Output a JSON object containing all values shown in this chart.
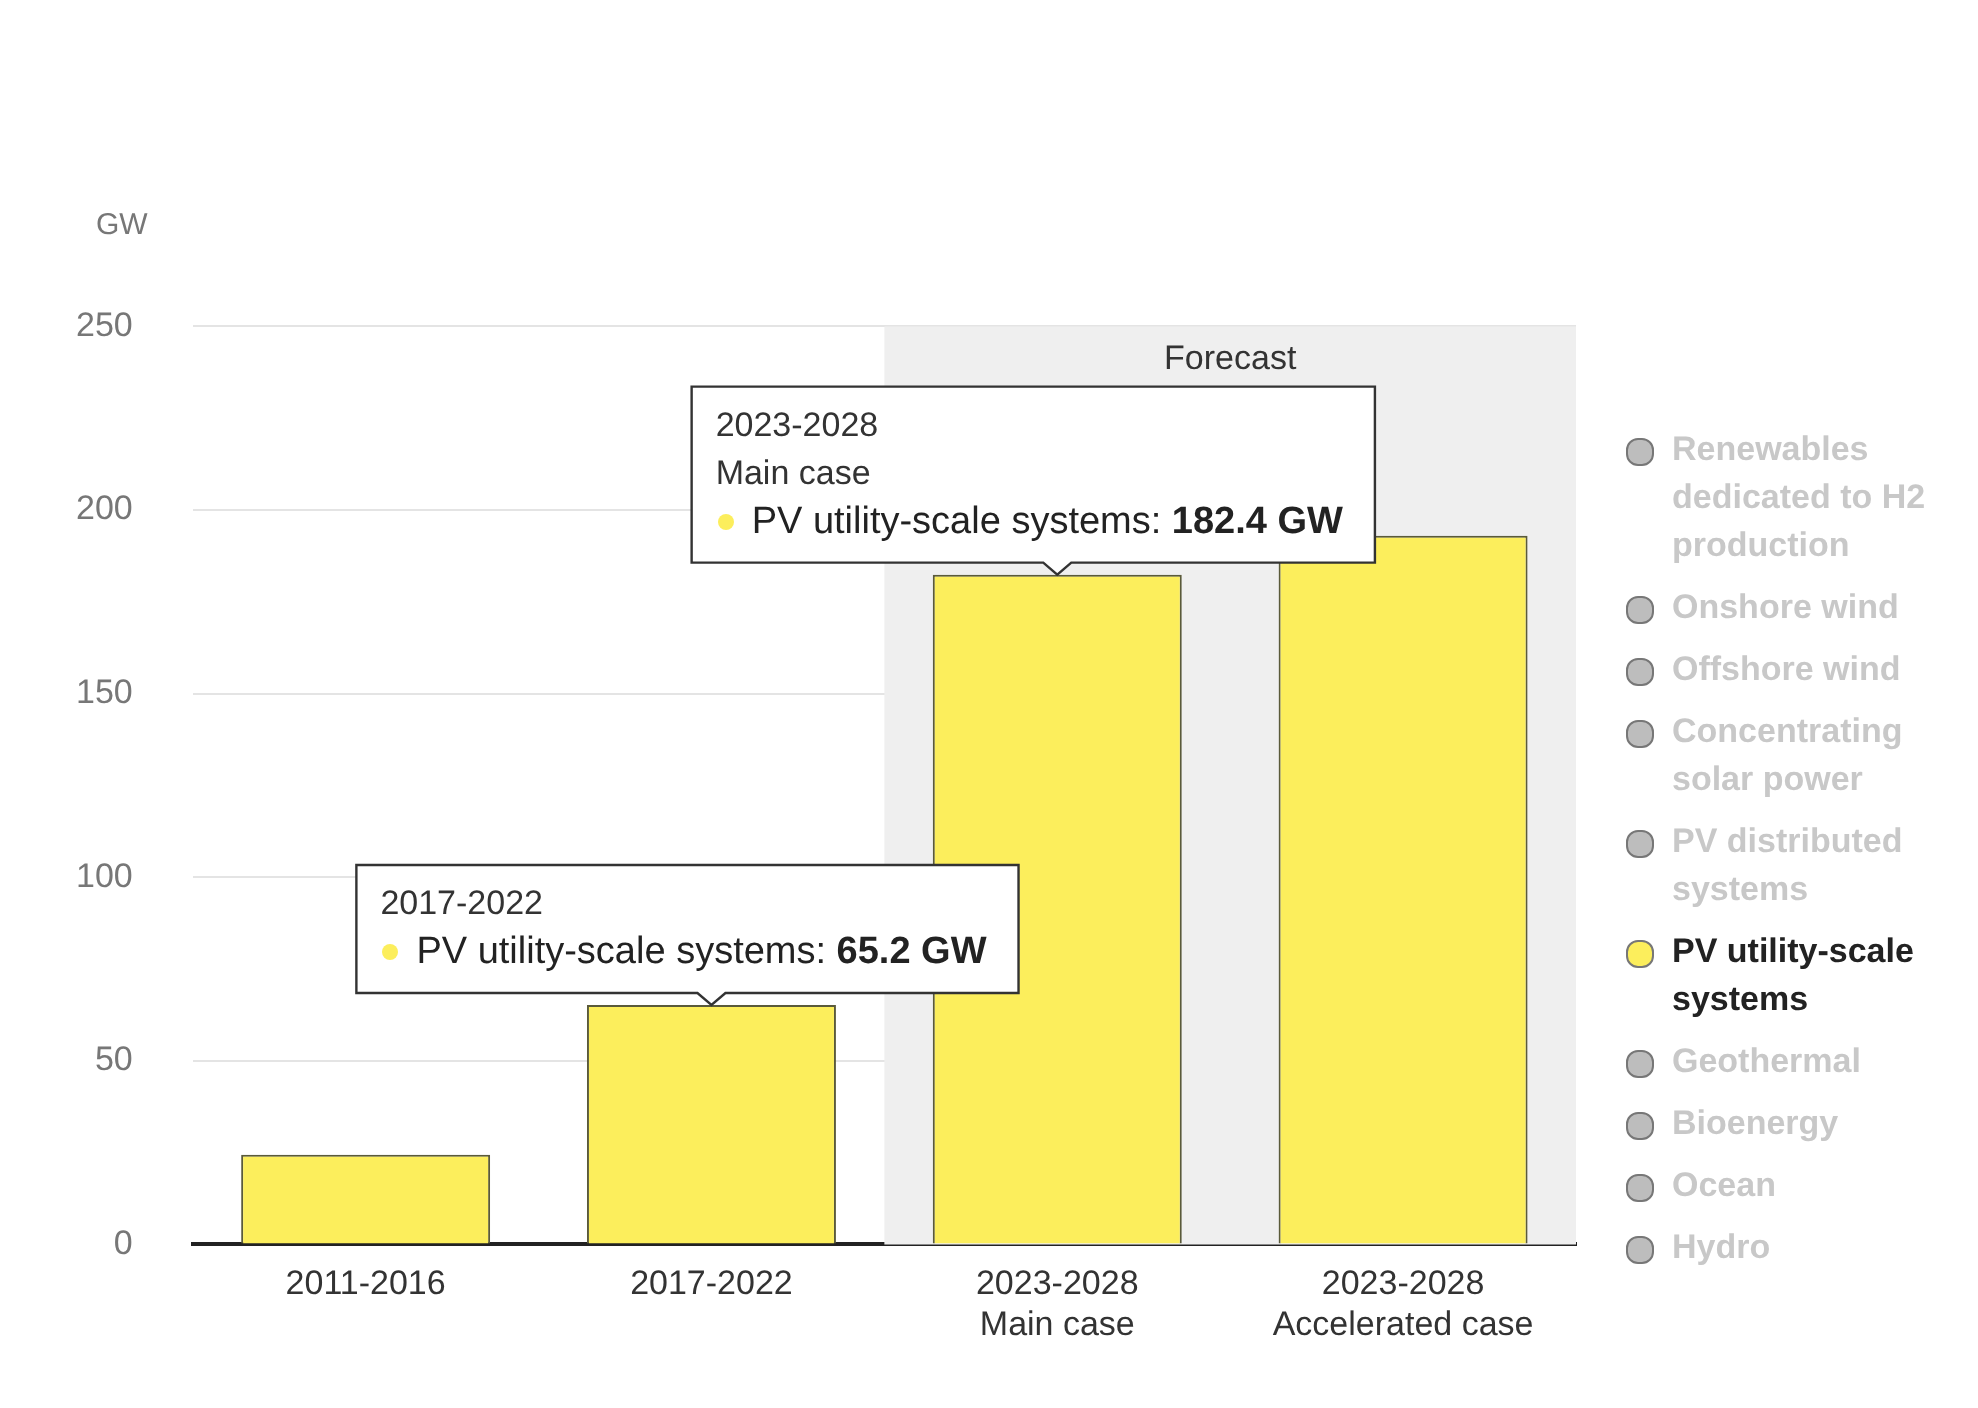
{
  "chart_data": {
    "type": "bar",
    "ylabel": "GW",
    "categories": [
      "2011-2016",
      "2017-2022",
      "2023-2028\nMain case",
      "2023-2028\nAccelerated case"
    ],
    "series": [
      {
        "name": "Renewables dedicated to H2 production",
        "color": "#bdbdbd",
        "values": [
          null,
          null,
          null,
          null
        ]
      },
      {
        "name": "Onshore wind",
        "color": "#bdbdbd",
        "values": [
          null,
          null,
          null,
          null
        ]
      },
      {
        "name": "Offshore wind",
        "color": "#bdbdbd",
        "values": [
          null,
          null,
          null,
          null
        ]
      },
      {
        "name": "Concentrating solar power",
        "color": "#bdbdbd",
        "values": [
          null,
          null,
          null,
          null
        ]
      },
      {
        "name": "PV distributed systems",
        "color": "#bdbdbd",
        "values": [
          null,
          null,
          null,
          null
        ]
      },
      {
        "name": "PV utility-scale systems",
        "color": "#fcee5c",
        "values": [
          24.4,
          65.2,
          182.4,
          193
        ]
      },
      {
        "name": "Geothermal",
        "color": "#bdbdbd",
        "values": [
          null,
          null,
          null,
          null
        ]
      },
      {
        "name": "Bioenergy",
        "color": "#bdbdbd",
        "values": [
          null,
          null,
          null,
          null
        ]
      },
      {
        "name": "Ocean",
        "color": "#bdbdbd",
        "values": [
          null,
          null,
          null,
          null
        ]
      },
      {
        "name": "Hydro",
        "color": "#bdbdbd",
        "values": [
          null,
          null,
          null,
          null
        ]
      }
    ],
    "ylim": [
      0,
      250
    ],
    "yticks": [
      0,
      50,
      100,
      150,
      200,
      250
    ],
    "grid": "y",
    "legend": "right",
    "bands": [
      {
        "axis": "x",
        "from": "2023-2028\nMain case",
        "to": "2023-2028\nAccelerated case",
        "label": "Forecast",
        "color": "#efefef"
      }
    ],
    "annotations": [
      {
        "text": "2017-2022\nPV utility-scale systems: 65.2 GW",
        "x": "2017-2022",
        "y": 65.2
      },
      {
        "text": "2023-2028\nMain case\nPV utility-scale systems: 182.4 GW",
        "x": "2023-2028\nMain case",
        "y": 182.4
      }
    ]
  }
}
